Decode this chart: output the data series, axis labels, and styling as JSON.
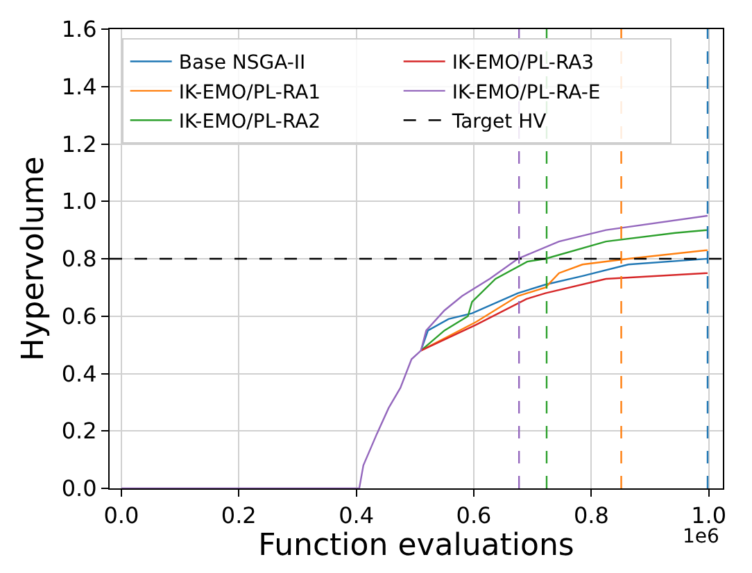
{
  "chart_data": {
    "type": "line",
    "xlabel": "Function evaluations",
    "ylabel": "Hypervolume",
    "xlim": [
      -0.02,
      1.024
    ],
    "ylim": [
      0,
      1.6
    ],
    "xticks": [
      {
        "value": 0,
        "label": "0.0"
      },
      0.2,
      0.4,
      0.6,
      0.8,
      {
        "value": 1,
        "label": "1.0"
      }
    ],
    "yticks": [
      {
        "value": 0,
        "label": "0.0"
      },
      0.2,
      0.4,
      0.6,
      0.8,
      {
        "value": 1,
        "label": "1.0"
      },
      1.2,
      1.4,
      1.6
    ],
    "grid": true,
    "legend": "top left",
    "line_style": "solid",
    "marker": "none",
    "annotations": [
      "1e6"
    ],
    "series": [
      {
        "name": "Base NSGA-II",
        "color": "#1f77b4",
        "x": [
          0.51,
          0.522,
          0.557,
          0.597,
          0.675,
          0.722,
          0.785,
          0.863,
          0.998
        ],
        "values": [
          0.48,
          0.55,
          0.59,
          0.61,
          0.68,
          0.71,
          0.74,
          0.78,
          0.8
        ]
      },
      {
        "name": "IK-EMO/PL-RA1",
        "color": "#ff7f0e",
        "x": [
          0.51,
          0.604,
          0.675,
          0.722,
          0.745,
          0.785,
          0.863,
          0.998
        ],
        "values": [
          0.48,
          0.58,
          0.67,
          0.7,
          0.75,
          0.78,
          0.8,
          0.83
        ]
      },
      {
        "name": "IK-EMO/PL-RA2",
        "color": "#2ca02c",
        "x": [
          0.51,
          0.55,
          0.59,
          0.597,
          0.637,
          0.691,
          0.722,
          0.825,
          0.943,
          0.998
        ],
        "values": [
          0.48,
          0.55,
          0.6,
          0.65,
          0.73,
          0.79,
          0.8,
          0.86,
          0.89,
          0.9
        ]
      },
      {
        "name": "IK-EMO/PL-RA3",
        "color": "#d62728",
        "x": [
          0.51,
          0.604,
          0.69,
          0.722,
          0.825,
          0.998
        ],
        "values": [
          0.48,
          0.57,
          0.66,
          0.68,
          0.73,
          0.75
        ]
      },
      {
        "name": "IK-EMO/PL-RA-E",
        "color": "#9467bd",
        "x": [
          0,
          0.405,
          0.412,
          0.435,
          0.455,
          0.475,
          0.494,
          0.51,
          0.519,
          0.55,
          0.58,
          0.627,
          0.675,
          0.745,
          0.825,
          0.998
        ],
        "values": [
          0,
          0,
          0.08,
          0.19,
          0.28,
          0.35,
          0.45,
          0.48,
          0.55,
          0.62,
          0.67,
          0.73,
          0.8,
          0.86,
          0.9,
          0.95
        ]
      }
    ],
    "ref_lines": [
      {
        "axis": "y",
        "value": 0.8,
        "label": "Target HV",
        "color": "#000000",
        "line_style": "dashed"
      },
      {
        "axis": "x",
        "value": 0.677,
        "color": "#9467bd",
        "line_style": "dashed"
      },
      {
        "axis": "x",
        "value": 0.724,
        "color": "#2ca02c",
        "line_style": "dashed"
      },
      {
        "axis": "x",
        "value": 0.851,
        "color": "#ff7f0e",
        "line_style": "dashed"
      },
      {
        "axis": "x",
        "value": 0.998,
        "color": "#1f77b4",
        "line_style": "dashed"
      }
    ]
  }
}
